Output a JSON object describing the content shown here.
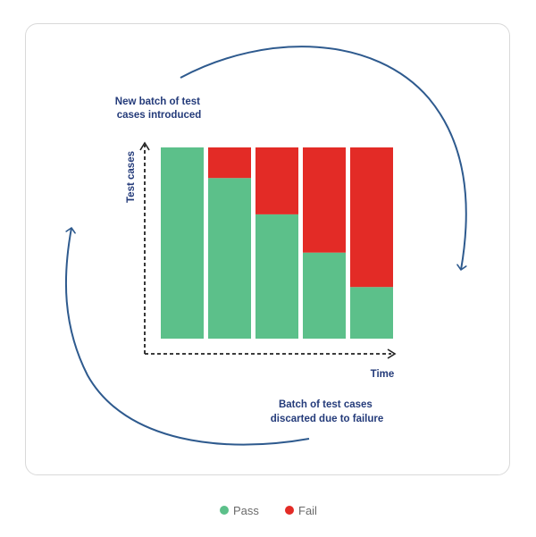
{
  "chart_data": {
    "type": "bar",
    "stacked": true,
    "categories": [
      "",
      "",
      "",
      "",
      ""
    ],
    "series": [
      {
        "name": "Pass",
        "color": "#5cc08a",
        "values": [
          100,
          84,
          65,
          45,
          27
        ]
      },
      {
        "name": "Fail",
        "color": "#e32b26",
        "values": [
          0,
          16,
          35,
          55,
          73
        ]
      }
    ],
    "xlabel": "Time",
    "ylabel": "Test cases",
    "ylim": [
      0,
      100
    ],
    "grid": false,
    "legend_position": "bottom-center",
    "annotations": {
      "top": [
        "New batch of test",
        "cases introduced"
      ],
      "bottom": [
        "Batch of test cases",
        "discarted due to failure"
      ]
    },
    "arrow_color": "#2e5a8e"
  }
}
